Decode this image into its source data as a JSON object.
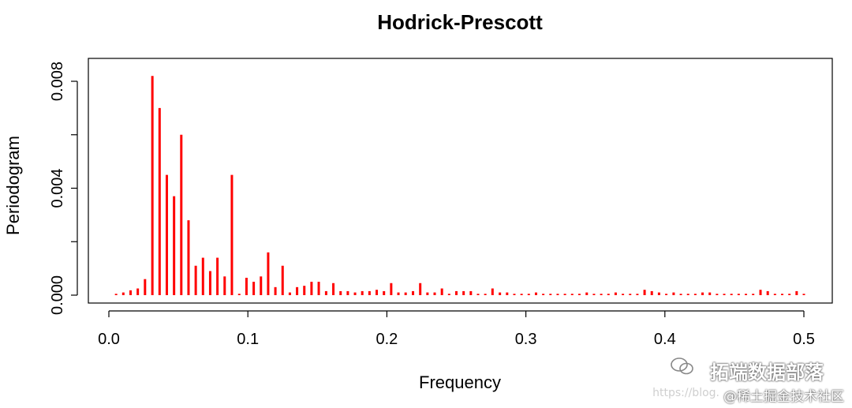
{
  "chart_data": {
    "type": "bar",
    "title": "Hodrick-Prescott",
    "xlabel": "Frequency",
    "ylabel": "Periodogram",
    "xlim": [
      0.0,
      0.5
    ],
    "ylim": [
      0.0,
      0.008
    ],
    "xticks": [
      "0.0",
      "0.1",
      "0.2",
      "0.3",
      "0.4",
      "0.5"
    ],
    "yticks": [
      "0.000",
      "0.004",
      "0.008"
    ],
    "grid": false,
    "series": [
      {
        "color": "#ff0000",
        "x": [
          0.0052,
          0.0104,
          0.0156,
          0.0208,
          0.026,
          0.0313,
          0.0365,
          0.0417,
          0.0469,
          0.0521,
          0.0573,
          0.0625,
          0.0677,
          0.0729,
          0.0781,
          0.0833,
          0.0885,
          0.0938,
          0.099,
          0.1042,
          0.1094,
          0.1146,
          0.1198,
          0.125,
          0.1302,
          0.1354,
          0.1406,
          0.1458,
          0.151,
          0.1563,
          0.1615,
          0.1667,
          0.1719,
          0.1771,
          0.1823,
          0.1875,
          0.1927,
          0.1979,
          0.2031,
          0.2083,
          0.2135,
          0.2188,
          0.224,
          0.2292,
          0.2344,
          0.2396,
          0.2448,
          0.25,
          0.2552,
          0.2604,
          0.2656,
          0.2708,
          0.276,
          0.2813,
          0.2865,
          0.2917,
          0.2969,
          0.3021,
          0.3073,
          0.3125,
          0.3177,
          0.3229,
          0.3281,
          0.3333,
          0.3385,
          0.3438,
          0.349,
          0.3542,
          0.3594,
          0.3646,
          0.3698,
          0.375,
          0.3802,
          0.3854,
          0.3906,
          0.3958,
          0.401,
          0.4063,
          0.4115,
          0.4167,
          0.4219,
          0.4271,
          0.4323,
          0.4375,
          0.4427,
          0.4479,
          0.4531,
          0.4583,
          0.4635,
          0.4688,
          0.474,
          0.4792,
          0.4844,
          0.4896,
          0.4948,
          0.5
        ],
        "values": [
          5e-05,
          0.0001,
          0.00018,
          0.00025,
          0.0006,
          0.0082,
          0.007,
          0.0045,
          0.0037,
          0.006,
          0.0028,
          0.0011,
          0.0014,
          0.0009,
          0.0014,
          0.0007,
          0.0045,
          5e-05,
          0.00065,
          0.0005,
          0.0007,
          0.0016,
          0.0003,
          0.0011,
          0.0001,
          0.0003,
          0.00035,
          0.0005,
          0.0005,
          0.00015,
          0.00045,
          0.00015,
          0.00015,
          0.0001,
          0.00015,
          0.00015,
          0.0002,
          0.00015,
          0.00045,
          0.0001,
          0.0001,
          0.00015,
          0.00045,
          0.0001,
          0.0001,
          0.00025,
          5e-05,
          0.00015,
          0.00015,
          0.00015,
          5e-05,
          5e-05,
          0.00025,
          0.0001,
          0.0001,
          5e-05,
          5e-05,
          5e-05,
          0.0001,
          5e-05,
          5e-05,
          5e-05,
          5e-05,
          5e-05,
          5e-05,
          0.0001,
          5e-05,
          5e-05,
          5e-05,
          0.0001,
          5e-05,
          5e-05,
          5e-05,
          0.0002,
          0.00015,
          0.0001,
          5e-05,
          0.0001,
          5e-05,
          5e-05,
          5e-05,
          0.0001,
          0.0001,
          5e-05,
          5e-05,
          5e-05,
          5e-05,
          5e-05,
          5e-05,
          0.0002,
          0.00015,
          5e-05,
          5e-05,
          5e-05,
          0.00015,
          5e-05
        ]
      }
    ]
  },
  "watermark": {
    "main": "拓端数据部落",
    "url": "https://blog.",
    "sub": "@稀土掘金技术社区",
    "icon": "wechat-icon"
  }
}
